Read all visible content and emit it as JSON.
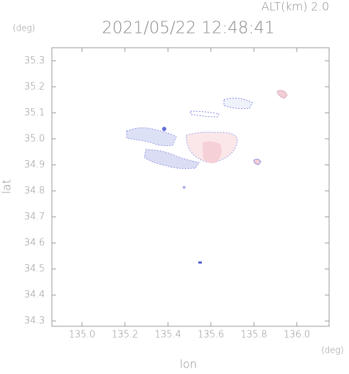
{
  "chart_data": {
    "type": "map",
    "title": "2021/05/22 12:48:41",
    "subtitle": "ALT(km)  2.0",
    "x_label": "lon",
    "y_label": "lat",
    "x_unit": "(deg)",
    "y_unit": "(deg)",
    "xlim": [
      134.86,
      136.15
    ],
    "xticks": [
      {
        "value": 135,
        "label": "135.0"
      },
      135.2,
      135.4,
      135.6,
      135.8,
      {
        "value": 136,
        "label": "136.0"
      }
    ],
    "ylim": [
      34.28,
      35.35
    ],
    "yticks": [
      34.3,
      34.4,
      34.5,
      34.6,
      34.7,
      34.8,
      34.9,
      {
        "value": 35,
        "label": "35.0"
      },
      35.1,
      35.2,
      35.3
    ]
  }
}
